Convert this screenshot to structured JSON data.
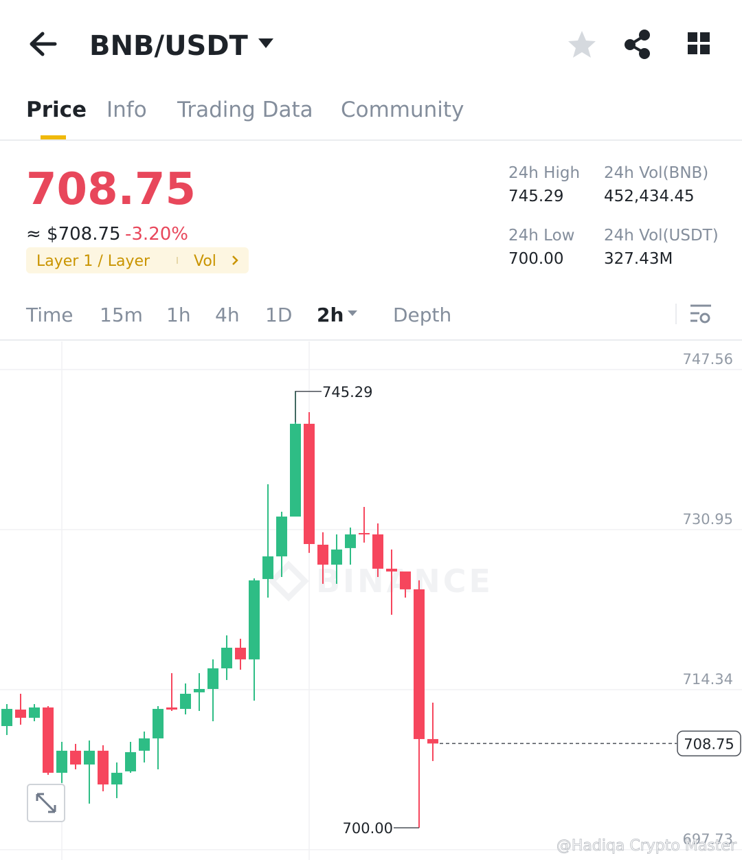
{
  "header": {
    "pair": "BNB/USDT"
  },
  "tabs": [
    "Price",
    "Info",
    "Trading Data",
    "Community"
  ],
  "price": {
    "last": "708.75",
    "approx": "≈ $708.75",
    "change": "-3.20%",
    "tag": "Layer 1 / Layer",
    "tag_link": "Vol"
  },
  "stats": [
    {
      "label": "24h High",
      "value": "745.29"
    },
    {
      "label": "24h Vol(BNB)",
      "value": "452,434.45"
    },
    {
      "label": "24h Low",
      "value": "700.00"
    },
    {
      "label": "24h Vol(USDT)",
      "value": "327.43M"
    }
  ],
  "intervals": [
    "Time",
    "15m",
    "1h",
    "4h",
    "1D",
    "2h",
    "Depth"
  ],
  "chart_data": {
    "type": "candlestick",
    "watermark": "BINANCE",
    "credit": "@Hadiqa Crypto Master",
    "up_color": "#2ebd85",
    "down_color": "#f6465d",
    "grid": true,
    "ylim": [
      696.66,
      750.48
    ],
    "yticks": [
      747.56,
      730.95,
      714.34,
      697.73
    ],
    "annotations": {
      "max_label": "745.29",
      "min_label": "700.00",
      "last_label": "708.75"
    },
    "candles": [
      {
        "open": 710.56,
        "high": 712.84,
        "low": 709.63,
        "close": 712.34
      },
      {
        "open": 712.27,
        "high": 713.91,
        "low": 710.7,
        "close": 711.42
      },
      {
        "open": 711.42,
        "high": 712.84,
        "low": 711.06,
        "close": 712.49
      },
      {
        "open": 712.49,
        "high": 712.63,
        "low": 705.5,
        "close": 705.71
      },
      {
        "open": 705.71,
        "high": 708.92,
        "low": 704.65,
        "close": 708.0
      },
      {
        "open": 708.0,
        "high": 708.71,
        "low": 706.07,
        "close": 706.57
      },
      {
        "open": 706.57,
        "high": 709.06,
        "low": 702.51,
        "close": 708.0
      },
      {
        "open": 708.0,
        "high": 708.57,
        "low": 703.79,
        "close": 704.5
      },
      {
        "open": 704.5,
        "high": 706.78,
        "low": 703.08,
        "close": 705.71
      },
      {
        "open": 705.86,
        "high": 708.92,
        "low": 705.71,
        "close": 707.85
      },
      {
        "open": 708.0,
        "high": 709.99,
        "low": 706.78,
        "close": 709.28
      },
      {
        "open": 709.28,
        "high": 712.63,
        "low": 706.07,
        "close": 712.34
      },
      {
        "open": 712.49,
        "high": 716.05,
        "low": 712.13,
        "close": 712.27
      },
      {
        "open": 712.34,
        "high": 714.98,
        "low": 711.77,
        "close": 713.91
      },
      {
        "open": 714.06,
        "high": 716.05,
        "low": 712.13,
        "close": 714.41
      },
      {
        "open": 714.41,
        "high": 717.48,
        "low": 711.06,
        "close": 716.55
      },
      {
        "open": 716.55,
        "high": 719.97,
        "low": 715.34,
        "close": 718.69
      },
      {
        "open": 718.69,
        "high": 719.62,
        "low": 716.41,
        "close": 717.48
      },
      {
        "open": 717.48,
        "high": 725.89,
        "low": 713.2,
        "close": 725.68
      },
      {
        "open": 725.82,
        "high": 735.65,
        "low": 723.89,
        "close": 728.17
      },
      {
        "open": 728.17,
        "high": 732.8,
        "low": 726.03,
        "close": 732.3
      },
      {
        "open": 732.3,
        "high": 745.29,
        "low": 732.3,
        "close": 741.93
      },
      {
        "open": 741.93,
        "high": 743.14,
        "low": 728.53,
        "close": 729.45
      },
      {
        "open": 729.38,
        "high": 730.67,
        "low": 725.32,
        "close": 727.31
      },
      {
        "open": 727.31,
        "high": 730.45,
        "low": 725.32,
        "close": 728.88
      },
      {
        "open": 729.03,
        "high": 731.16,
        "low": 727.31,
        "close": 730.45
      },
      {
        "open": 730.59,
        "high": 733.3,
        "low": 729.6,
        "close": 730.45
      },
      {
        "open": 730.45,
        "high": 731.59,
        "low": 726.03,
        "close": 726.89
      },
      {
        "open": 726.89,
        "high": 728.88,
        "low": 722.11,
        "close": 726.6
      },
      {
        "open": 726.6,
        "high": 726.6,
        "low": 723.89,
        "close": 724.75
      },
      {
        "open": 724.75,
        "high": 725.68,
        "low": 700.0,
        "close": 709.21
      },
      {
        "open": 709.21,
        "high": 712.99,
        "low": 706.93,
        "close": 708.75
      }
    ]
  }
}
